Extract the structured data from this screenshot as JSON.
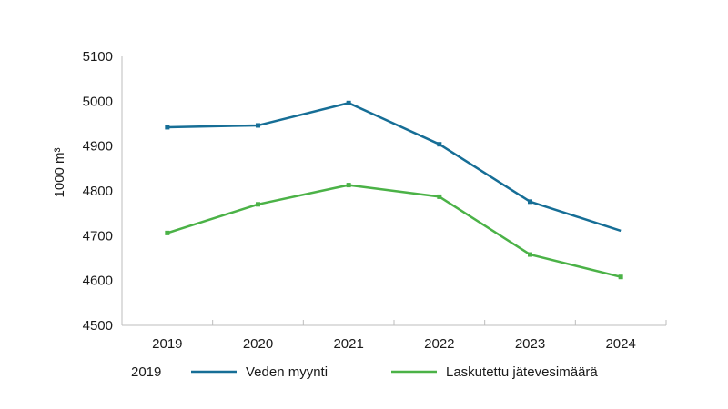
{
  "chart_data": {
    "type": "line",
    "x": [
      "2019",
      "2020",
      "2021",
      "2022",
      "2023",
      "2024"
    ],
    "ylabel": "1000 m³",
    "ylim": [
      4500,
      5100
    ],
    "yticks": [
      4500,
      4600,
      4700,
      4800,
      4900,
      5000,
      5100
    ],
    "grid": false,
    "legend": {
      "position": "bottom",
      "prefix": "2019"
    },
    "series": [
      {
        "name": "Veden myynti",
        "color": "#166e96",
        "values": [
          4942,
          4946,
          4996,
          4904,
          4776,
          4711
        ]
      },
      {
        "name": "Laskutettu jätevesimäärä",
        "color": "#4bb247",
        "values": [
          4706,
          4770,
          4813,
          4787,
          4658,
          4608
        ]
      }
    ]
  }
}
